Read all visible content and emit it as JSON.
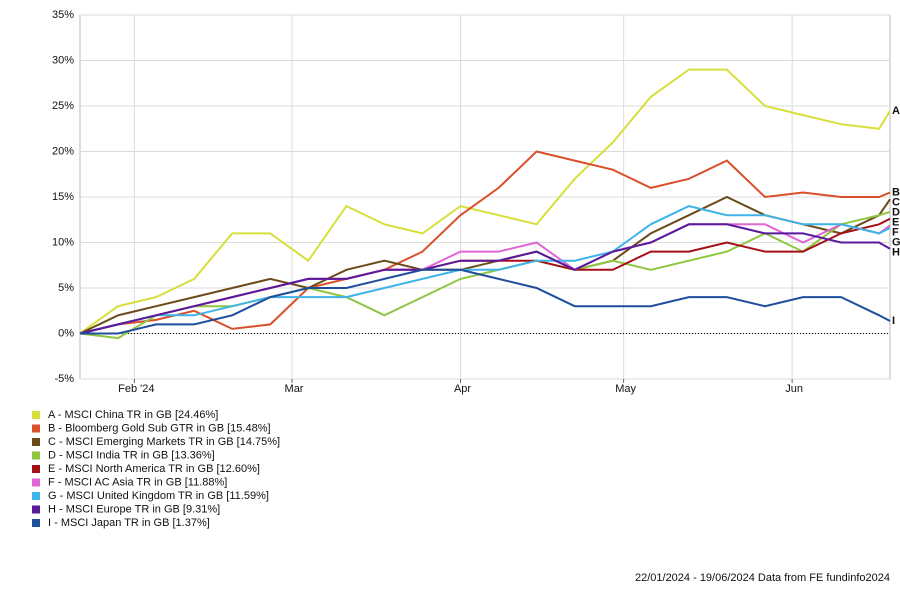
{
  "chart_data": {
    "type": "line",
    "x": [
      "2024-01-22",
      "2024-01-29",
      "2024-02-05",
      "2024-02-12",
      "2024-02-19",
      "2024-02-26",
      "2024-03-04",
      "2024-03-11",
      "2024-03-18",
      "2024-03-25",
      "2024-04-01",
      "2024-04-08",
      "2024-04-15",
      "2024-04-22",
      "2024-04-29",
      "2024-05-06",
      "2024-05-13",
      "2024-05-20",
      "2024-05-27",
      "2024-06-03",
      "2024-06-10",
      "2024-06-17",
      "2024-06-19"
    ],
    "xlim": [
      "2024-01-22",
      "2024-06-19"
    ],
    "xticks": [
      {
        "value": "2024-02-01",
        "label": "Feb '24"
      },
      {
        "value": "2024-03-01",
        "label": "Mar"
      },
      {
        "value": "2024-04-01",
        "label": "Apr"
      },
      {
        "value": "2024-05-01",
        "label": "May"
      },
      {
        "value": "2024-06-01",
        "label": "Jun"
      }
    ],
    "ylim": [
      -5,
      35
    ],
    "yticks": [
      {
        "value": -5,
        "label": "-5%"
      },
      {
        "value": 0,
        "label": "0%"
      },
      {
        "value": 5,
        "label": "5%"
      },
      {
        "value": 10,
        "label": "10%"
      },
      {
        "value": 15,
        "label": "15%"
      },
      {
        "value": 20,
        "label": "20%"
      },
      {
        "value": 25,
        "label": "25%"
      },
      {
        "value": 30,
        "label": "30%"
      },
      {
        "value": 35,
        "label": "35%"
      }
    ],
    "grid": true,
    "series": [
      {
        "name": "A - MSCI China TR in GB [24.46%]",
        "letter": "A",
        "color": "#d6df3c",
        "values": [
          0,
          3,
          4,
          6,
          11,
          11,
          8,
          14,
          12,
          11,
          14,
          13,
          12,
          17,
          21,
          26,
          29,
          29,
          25,
          24,
          23,
          22.5,
          24.46
        ]
      },
      {
        "name": "B - Bloomberg Gold Sub GTR in GB [15.48%]",
        "letter": "B",
        "color": "#d9502a",
        "values": [
          0,
          1,
          1.5,
          2.5,
          0.5,
          1,
          5,
          6,
          7,
          9,
          13,
          16,
          20,
          19,
          18,
          16,
          17,
          19,
          15,
          15.5,
          15,
          15,
          15.48
        ]
      },
      {
        "name": "C - MSCI Emerging Markets TR in GB [14.75%]",
        "letter": "C",
        "color": "#6b4a1a",
        "values": [
          0,
          2,
          3,
          4,
          5,
          6,
          5,
          7,
          8,
          7,
          7,
          8,
          9,
          7,
          8,
          11,
          13,
          15,
          13,
          12,
          11,
          13,
          14.75
        ]
      },
      {
        "name": "D - MSCI India TR in GB [13.36%]",
        "letter": "D",
        "color": "#8ec63f",
        "values": [
          0,
          -0.5,
          2,
          3,
          3,
          4,
          5,
          4,
          2,
          4,
          6,
          7,
          8,
          7,
          8,
          7,
          8,
          9,
          11,
          9,
          12,
          13,
          13.36
        ]
      },
      {
        "name": "E - MSCI North America TR in GB [12.60%]",
        "letter": "E",
        "color": "#a50f15",
        "values": [
          0,
          1,
          2,
          3,
          4,
          5,
          6,
          6,
          7,
          7,
          8,
          8,
          8,
          7,
          7,
          9,
          9,
          10,
          9,
          9,
          11,
          12,
          12.6
        ]
      },
      {
        "name": "F - MSCI AC Asia TR in GB [11.88%]",
        "letter": "F",
        "color": "#e066d8",
        "values": [
          0,
          1,
          2,
          3,
          4,
          5,
          6,
          6,
          7,
          7,
          9,
          9,
          10,
          7,
          9,
          10,
          12,
          12,
          12,
          10,
          12,
          11,
          11.88
        ]
      },
      {
        "name": "G - MSCI United Kingdom TR in GB [11.59%]",
        "letter": "G",
        "color": "#3fb4e8",
        "values": [
          0,
          1,
          2,
          2,
          3,
          4,
          4,
          4,
          5,
          6,
          7,
          7,
          8,
          8,
          9,
          12,
          14,
          13,
          13,
          12,
          12,
          11,
          11.59
        ]
      },
      {
        "name": "H - MSCI Europe TR in GB [9.31%]",
        "letter": "H",
        "color": "#5a1a9c",
        "values": [
          0,
          1,
          2,
          3,
          4,
          5,
          6,
          6,
          7,
          7,
          8,
          8,
          9,
          7,
          9,
          10,
          12,
          12,
          11,
          11,
          10,
          10,
          9.31
        ]
      },
      {
        "name": "I - MSCI Japan TR in GB [1.37%]",
        "letter": "I",
        "color": "#1f4e9c",
        "values": [
          0,
          0,
          1,
          1,
          2,
          4,
          5,
          5,
          6,
          7,
          7,
          6,
          5,
          3,
          3,
          3,
          4,
          4,
          3,
          4,
          4,
          2,
          1.37
        ]
      }
    ],
    "footer": "22/01/2024 - 19/06/2024 Data from FE fundinfo2024"
  }
}
